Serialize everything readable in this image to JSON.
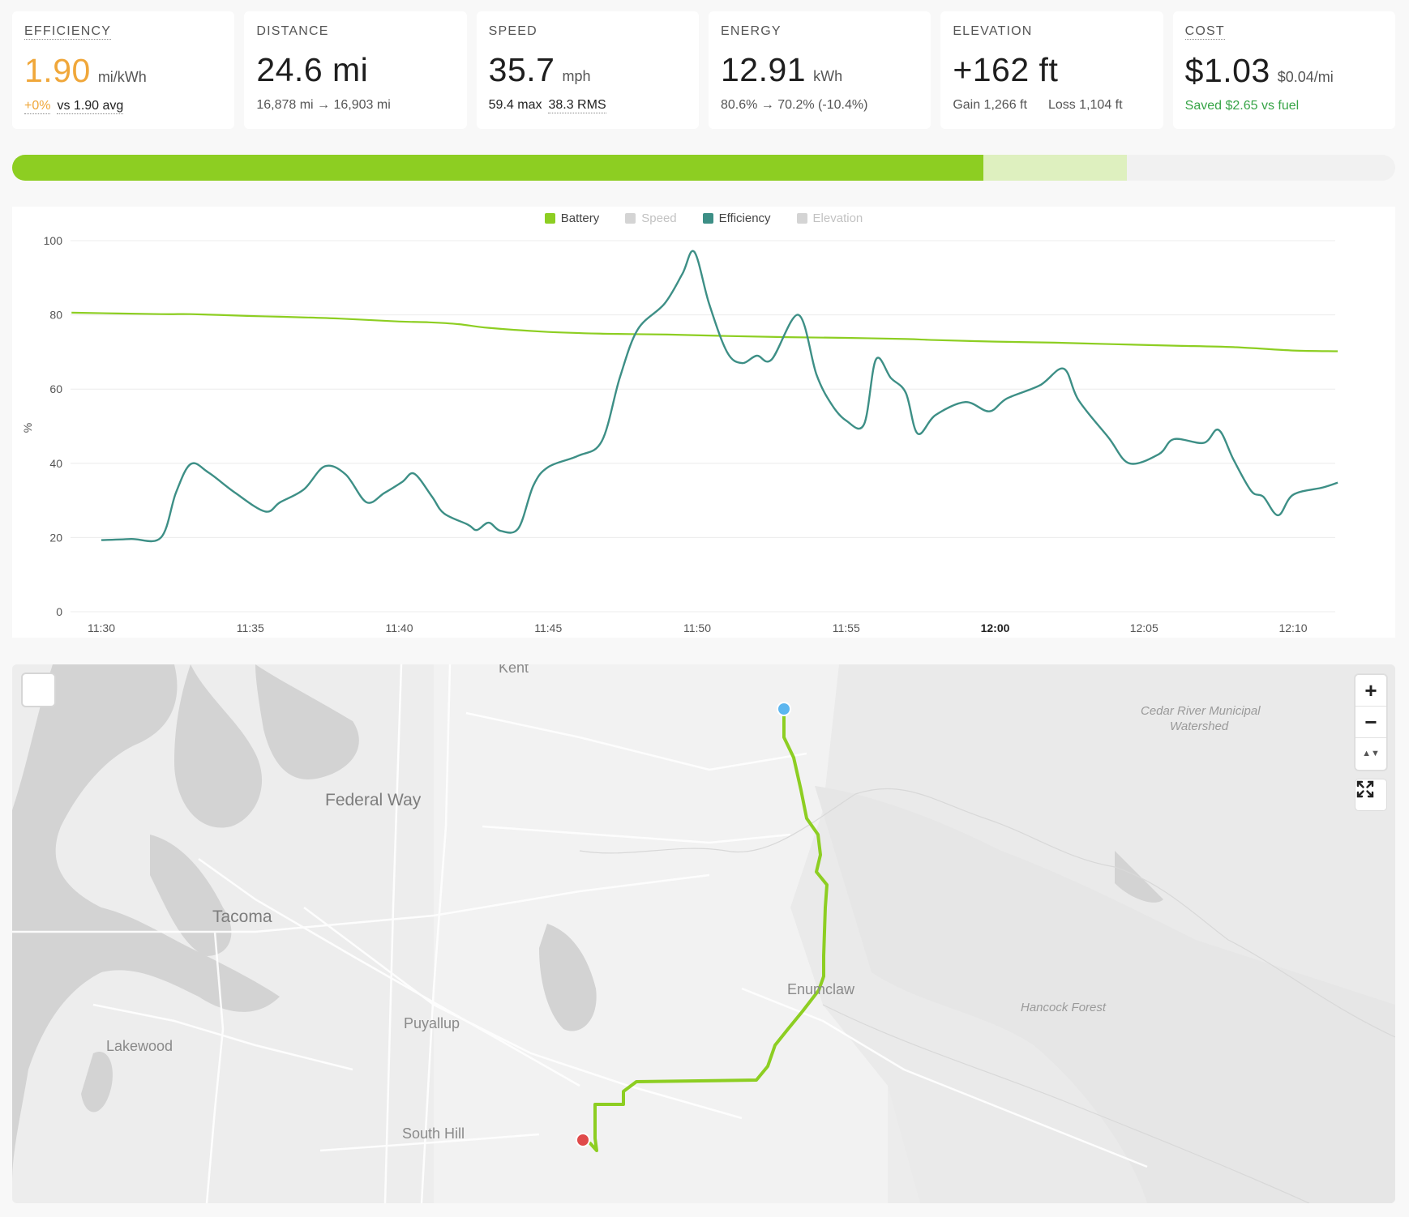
{
  "cards": {
    "efficiency": {
      "label": "EFFICIENCY",
      "value": "1.90",
      "unit": "mi/kWh",
      "change": "+0%",
      "compare": "vs 1.90 avg"
    },
    "distance": {
      "label": "DISTANCE",
      "value": "24.6 mi",
      "odometer": "16,878 mi → 16,903 mi"
    },
    "speed": {
      "label": "SPEED",
      "value": "35.7",
      "unit": "mph",
      "max": "59.4 max",
      "rms": "38.3 RMS"
    },
    "energy": {
      "label": "ENERGY",
      "value": "12.91",
      "unit": "kWh",
      "range": "80.6% → 70.2% (-10.4%)"
    },
    "elevation": {
      "label": "ELEVATION",
      "value": "+162 ft",
      "gain": "Gain 1,266 ft",
      "loss": "Loss 1,104 ft"
    },
    "cost": {
      "label": "COST",
      "value": "$1.03",
      "unit": "$0.04/mi",
      "saved": "Saved $2.65 vs fuel"
    }
  },
  "battery_bar": {
    "used_pct": 70.2,
    "consumed_pct": 10.4
  },
  "colors": {
    "battery": "#8dce22",
    "efficiency": "#3d8f86",
    "disabled": "#d4d4d4",
    "start": "#5cb6ef",
    "end": "#e04a4a"
  },
  "chart_data": {
    "type": "line",
    "ylabel": "%",
    "ylim": [
      0,
      100
    ],
    "yticks": [
      0,
      20,
      40,
      60,
      80,
      100
    ],
    "x_range_min": [
      0,
      42
    ],
    "xticks": [
      {
        "label": "11:30",
        "t": 0,
        "bold": false
      },
      {
        "label": "11:35",
        "t": 5,
        "bold": false
      },
      {
        "label": "11:40",
        "t": 10,
        "bold": false
      },
      {
        "label": "11:45",
        "t": 15,
        "bold": false
      },
      {
        "label": "11:50",
        "t": 20,
        "bold": false
      },
      {
        "label": "11:55",
        "t": 25,
        "bold": false
      },
      {
        "label": "12:00",
        "t": 30,
        "bold": true
      },
      {
        "label": "12:05",
        "t": 35,
        "bold": false
      },
      {
        "label": "12:10",
        "t": 40,
        "bold": false
      }
    ],
    "legend": [
      {
        "name": "Battery",
        "enabled": true
      },
      {
        "name": "Speed",
        "enabled": false
      },
      {
        "name": "Efficiency",
        "enabled": true
      },
      {
        "name": "Elevation",
        "enabled": false
      }
    ],
    "series": [
      {
        "name": "Battery",
        "points": [
          [
            -1,
            80.6
          ],
          [
            2,
            80.2
          ],
          [
            3,
            80.2
          ],
          [
            5,
            79.7
          ],
          [
            6,
            79.5
          ],
          [
            8,
            79.0
          ],
          [
            10,
            78.2
          ],
          [
            11,
            78.0
          ],
          [
            12,
            77.5
          ],
          [
            13,
            76.5
          ],
          [
            15,
            75.4
          ],
          [
            17,
            74.9
          ],
          [
            19,
            74.7
          ],
          [
            21,
            74.3
          ],
          [
            23,
            74.0
          ],
          [
            25,
            73.8
          ],
          [
            27,
            73.5
          ],
          [
            28,
            73.2
          ],
          [
            30,
            72.8
          ],
          [
            32,
            72.5
          ],
          [
            34,
            72.1
          ],
          [
            36,
            71.7
          ],
          [
            38,
            71.3
          ],
          [
            40,
            70.4
          ],
          [
            41.5,
            70.2
          ]
        ]
      },
      {
        "name": "Efficiency",
        "points": [
          [
            0,
            19.3
          ],
          [
            1,
            19.6
          ],
          [
            2,
            20
          ],
          [
            2.5,
            32
          ],
          [
            3,
            39.8
          ],
          [
            3.6,
            37.5
          ],
          [
            4.5,
            32
          ],
          [
            5.5,
            27
          ],
          [
            6,
            29.5
          ],
          [
            6.8,
            33
          ],
          [
            7.5,
            39.2
          ],
          [
            8.2,
            37
          ],
          [
            8.9,
            29.5
          ],
          [
            9.5,
            32
          ],
          [
            10.1,
            35
          ],
          [
            10.5,
            37.2
          ],
          [
            11.1,
            31
          ],
          [
            11.5,
            26.5
          ],
          [
            12.3,
            23.5
          ],
          [
            12.6,
            22
          ],
          [
            13,
            24
          ],
          [
            13.4,
            21.8
          ],
          [
            14,
            22.5
          ],
          [
            14.5,
            34
          ],
          [
            15,
            39
          ],
          [
            16,
            42
          ],
          [
            16.8,
            46
          ],
          [
            17.4,
            63
          ],
          [
            18,
            76
          ],
          [
            18.9,
            83
          ],
          [
            19.5,
            91
          ],
          [
            19.9,
            97
          ],
          [
            20.4,
            83
          ],
          [
            21,
            70
          ],
          [
            21.5,
            67
          ],
          [
            22,
            69
          ],
          [
            22.5,
            68
          ],
          [
            23.4,
            80
          ],
          [
            24,
            64
          ],
          [
            24.5,
            56
          ],
          [
            25,
            51.5
          ],
          [
            25.6,
            50.5
          ],
          [
            26,
            68
          ],
          [
            26.5,
            63
          ],
          [
            27,
            59
          ],
          [
            27.4,
            48
          ],
          [
            28,
            53
          ],
          [
            29,
            56.5
          ],
          [
            29.8,
            54
          ],
          [
            30.4,
            57.5
          ],
          [
            31.5,
            61
          ],
          [
            32.3,
            65.5
          ],
          [
            32.8,
            57
          ],
          [
            33.8,
            47
          ],
          [
            34.5,
            40
          ],
          [
            35.5,
            42.5
          ],
          [
            36,
            46.5
          ],
          [
            37,
            45.5
          ],
          [
            37.5,
            49
          ],
          [
            38,
            41
          ],
          [
            38.6,
            32.5
          ],
          [
            39,
            31
          ],
          [
            39.5,
            26
          ],
          [
            40,
            31.5
          ],
          [
            41,
            33.5
          ],
          [
            41.5,
            34.8
          ]
        ]
      }
    ]
  },
  "map": {
    "places": [
      "Kent",
      "Federal Way",
      "Tacoma",
      "Puyallup",
      "Lakewood",
      "South Hill",
      "Enumclaw",
      "Hancock Forest",
      "Cedar River Municipal",
      "Watershed"
    ],
    "zoom_in": "+",
    "zoom_out": "−",
    "compass": "▲▼"
  }
}
